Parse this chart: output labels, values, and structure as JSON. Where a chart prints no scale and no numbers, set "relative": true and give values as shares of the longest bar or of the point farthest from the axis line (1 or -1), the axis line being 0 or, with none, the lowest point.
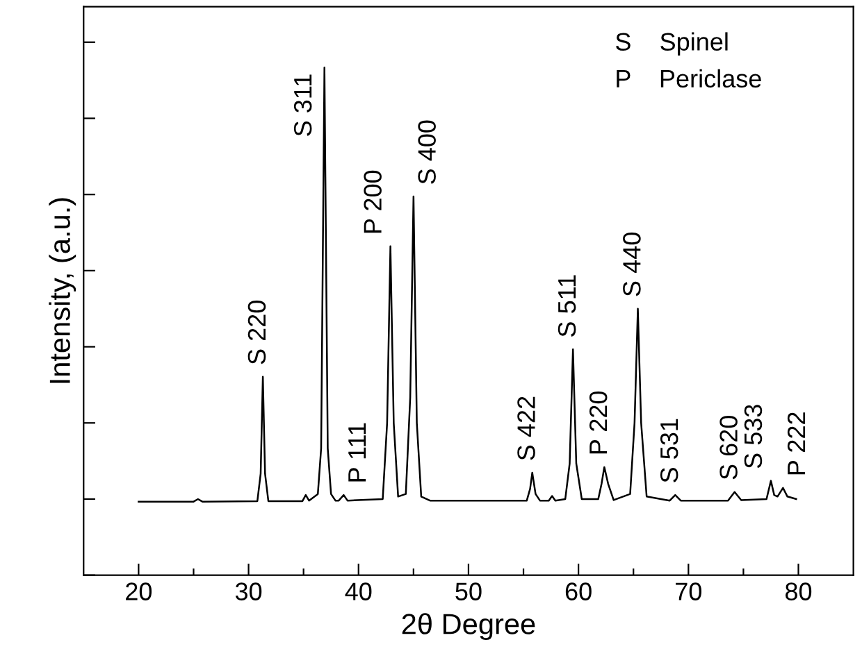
{
  "chart_data": {
    "type": "line",
    "relative": true,
    "xlabel": "2θ Degree",
    "ylabel": "Intensity, (a.u.)",
    "xlim": [
      15,
      85
    ],
    "xticks": [
      20,
      {
        "value": 25,
        "label": null
      },
      30,
      {
        "value": 35,
        "label": null
      },
      40,
      {
        "value": 45,
        "label": null
      },
      50,
      {
        "value": 55,
        "label": null
      },
      60,
      {
        "value": 65,
        "label": null
      },
      70,
      {
        "value": 75,
        "label": null
      },
      80
    ],
    "tick_labels": "x",
    "grid": false,
    "marker": "none",
    "line_style": "solid",
    "series": [
      {
        "color": "#000000",
        "x": [
          20,
          25.0,
          25.4,
          25.8,
          30.8,
          31.1,
          31.3,
          31.5,
          31.8,
          34.9,
          35.2,
          35.5,
          36.3,
          36.6,
          36.9,
          37.2,
          37.5,
          37.9,
          38.2,
          38.65,
          39.0,
          42.2,
          42.6,
          42.9,
          43.2,
          43.6,
          44.3,
          44.7,
          45.0,
          45.3,
          45.7,
          46.5,
          55.3,
          55.6,
          55.8,
          56.1,
          56.5,
          57.3,
          57.6,
          57.9,
          58.8,
          59.2,
          59.5,
          59.8,
          60.3,
          61.8,
          62.1,
          62.35,
          62.7,
          63.2,
          64.7,
          65.1,
          65.4,
          65.7,
          66.2,
          68.3,
          68.8,
          69.3,
          73.6,
          74.2,
          74.8,
          77.1,
          77.5,
          77.8,
          78.1,
          78.6,
          79.0,
          79.8
        ],
        "values": [
          0.145,
          0.145,
          0.15,
          0.145,
          0.146,
          0.2,
          0.391,
          0.2,
          0.146,
          0.146,
          0.158,
          0.147,
          0.16,
          0.25,
          1.0,
          0.25,
          0.16,
          0.147,
          0.147,
          0.158,
          0.147,
          0.15,
          0.3,
          0.648,
          0.3,
          0.155,
          0.16,
          0.35,
          0.746,
          0.3,
          0.155,
          0.147,
          0.147,
          0.17,
          0.202,
          0.16,
          0.147,
          0.147,
          0.156,
          0.147,
          0.15,
          0.22,
          0.445,
          0.22,
          0.15,
          0.15,
          0.18,
          0.213,
          0.18,
          0.148,
          0.16,
          0.3,
          0.525,
          0.3,
          0.155,
          0.147,
          0.158,
          0.147,
          0.147,
          0.164,
          0.148,
          0.15,
          0.186,
          0.158,
          0.155,
          0.172,
          0.155,
          0.15
        ]
      }
    ],
    "annotations": [
      {
        "text": "S 220",
        "x": 31.3,
        "y": 0.391
      },
      {
        "text": "S 311",
        "x": 36.9,
        "y": 1.0
      },
      {
        "text": "P 111",
        "x": 38.65,
        "y": 0.158
      },
      {
        "text": "P 200",
        "x": 42.9,
        "y": 0.648
      },
      {
        "text": "S 400",
        "x": 45.0,
        "y": 0.746
      },
      {
        "text": "S 422",
        "x": 55.8,
        "y": 0.202
      },
      {
        "text": "S 511",
        "x": 59.5,
        "y": 0.445
      },
      {
        "text": "P 220",
        "x": 62.35,
        "y": 0.213
      },
      {
        "text": "S 440",
        "x": 65.4,
        "y": 0.525
      },
      {
        "text": "S 531",
        "x": 68.8,
        "y": 0.158
      },
      {
        "text": "S 620",
        "x": 74.2,
        "y": 0.164
      },
      {
        "text": "S 533",
        "x": 77.5,
        "y": 0.186
      },
      {
        "text": "P 222",
        "x": 78.6,
        "y": 0.172
      },
      "S    Spinel",
      "P    Periclase"
    ]
  }
}
